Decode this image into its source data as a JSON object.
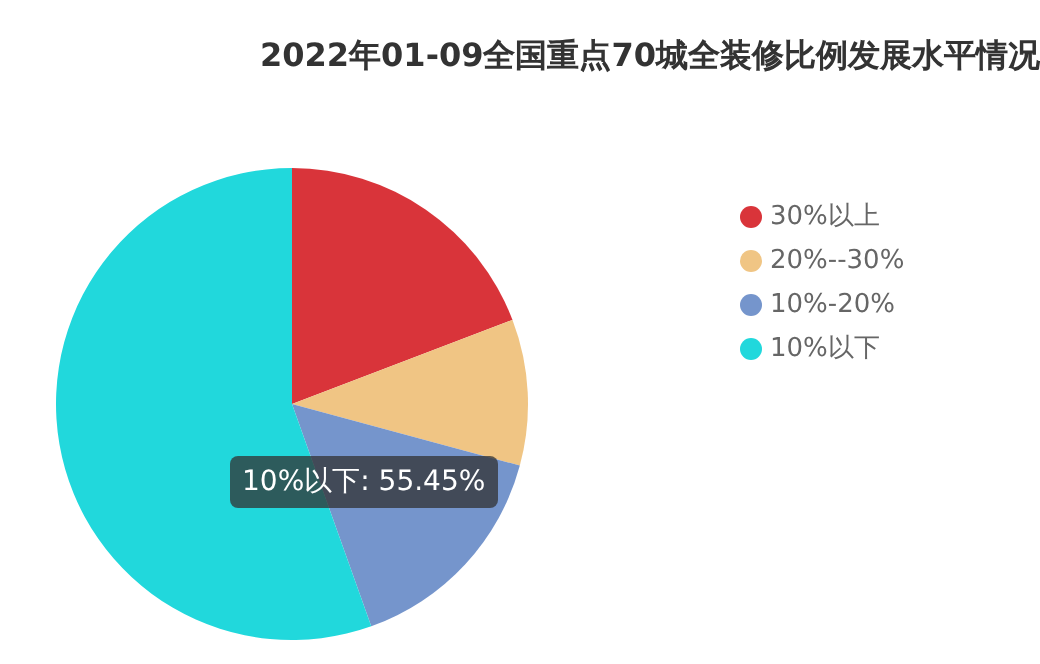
{
  "chart_data": {
    "type": "pie",
    "title": "2022年01-09全国重点70城全装修比例发展水平情况",
    "categories": [
      "30%以上",
      "20%--30%",
      "10%-20%",
      "10%以下"
    ],
    "values": [
      19.2,
      10.0,
      15.35,
      55.45
    ],
    "colors": [
      "#d9343a",
      "#f0c584",
      "#7595cc",
      "#21d8dc"
    ],
    "legend": "right",
    "annotations": [
      "10%以下: 55.45%"
    ]
  }
}
